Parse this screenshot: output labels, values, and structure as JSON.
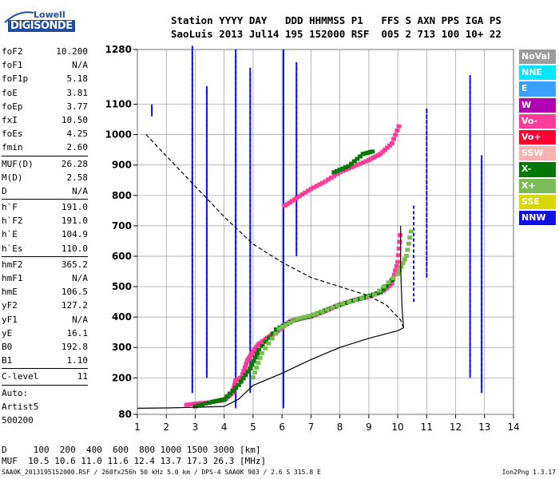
{
  "logo": {
    "line1": "Lowell",
    "line2": "DIGISONDE"
  },
  "header": {
    "row1": "Station YYYY DAY   DDD HHMMSS P1   FFS S AXN PPS IGA PS",
    "row2": "SaoLuis 2013 Jul14 195 152000 RSF  005 2 713 100 10+ 22"
  },
  "params": {
    "group1": [
      {
        "label": "foF2",
        "value": "10.200"
      },
      {
        "label": "foF1",
        "value": "N/A"
      },
      {
        "label": "foF1p",
        "value": "5.18"
      },
      {
        "label": "foE",
        "value": "3.81"
      },
      {
        "label": "foEp",
        "value": "3.77"
      },
      {
        "label": "fxI",
        "value": "10.50"
      },
      {
        "label": "foEs",
        "value": "4.25"
      },
      {
        "label": "fmin",
        "value": "2.60"
      }
    ],
    "group2": [
      {
        "label": "MUF(D)",
        "value": "26.28"
      },
      {
        "label": "M(D)",
        "value": "2.58"
      },
      {
        "label": "D",
        "value": "N/A"
      }
    ],
    "group3": [
      {
        "label": "h`F",
        "value": "191.0"
      },
      {
        "label": "h`F2",
        "value": "191.0"
      },
      {
        "label": "h`E",
        "value": "104.9"
      },
      {
        "label": "h`Es",
        "value": "110.0"
      }
    ],
    "group4": [
      {
        "label": "hmF2",
        "value": "365.2"
      },
      {
        "label": "hmF1",
        "value": "N/A"
      },
      {
        "label": "hmE",
        "value": "106.5"
      },
      {
        "label": "yF2",
        "value": "127.2"
      },
      {
        "label": "yF1",
        "value": "N/A"
      },
      {
        "label": "yE",
        "value": "16.1"
      },
      {
        "label": "B0",
        "value": "192.8"
      },
      {
        "label": "B1",
        "value": "1.10"
      }
    ],
    "clevel": {
      "label": "C-level",
      "value": "11"
    },
    "auto": [
      "Auto:",
      "Artist5",
      "500200"
    ]
  },
  "bottom": {
    "row1": "D     100  200  400  600  800 1000 1500 3000 [km]",
    "row2": "MUF  10.5 10.6 11.0 11.6 12.4 13.7 17.3 26.3 [MHz]"
  },
  "footer": {
    "left": "SAA0K_2013195152000.RSF / 260fx256h 50 kHz 5.0 km / DPS-4 SAA0K 903 / 2.6 S 315.8 E",
    "right": "Ion2Png 1.3.17"
  },
  "legend": [
    {
      "label": "NoVal",
      "color": "#9c9c9c"
    },
    {
      "label": "NNE",
      "color": "#00e6ff"
    },
    {
      "label": "E",
      "color": "#3aa0ff"
    },
    {
      "label": "W",
      "color": "#b000b0"
    },
    {
      "label": "Vo-",
      "color": "#ff3c9a"
    },
    {
      "label": "Vo+",
      "color": "#ff0030"
    },
    {
      "label": "SSW",
      "color": "#ffb0b0"
    },
    {
      "label": "X-",
      "color": "#007800"
    },
    {
      "label": "X+",
      "color": "#7cbc56"
    },
    {
      "label": "SSE",
      "color": "#d8d800"
    },
    {
      "label": "NNW",
      "color": "#1010e0"
    }
  ],
  "chart_data": {
    "type": "scatter",
    "xlabel": "",
    "ylabel": "",
    "xlim": [
      1,
      14
    ],
    "ylim": [
      80,
      1280
    ],
    "x_ticks": [
      1,
      2,
      3,
      4,
      5,
      6,
      7,
      8,
      9,
      10,
      11,
      12,
      13,
      14
    ],
    "y_ticks": [
      80,
      200,
      300,
      400,
      500,
      600,
      700,
      800,
      900,
      1000,
      1100,
      1280
    ],
    "grid": true,
    "legend_position": "right",
    "series": [
      {
        "color": "#ff3c9a",
        "points": [
          [
            2.7,
            110
          ],
          [
            3.1,
            115
          ],
          [
            3.5,
            118
          ],
          [
            4.0,
            125
          ],
          [
            4.3,
            150
          ],
          [
            4.4,
            190
          ],
          [
            4.6,
            200
          ],
          [
            4.8,
            255
          ],
          [
            5.0,
            285
          ],
          [
            5.2,
            310
          ],
          [
            5.5,
            330
          ],
          [
            5.8,
            350
          ],
          [
            6.0,
            365
          ],
          [
            6.3,
            385
          ],
          [
            6.6,
            393
          ],
          [
            7.0,
            400
          ],
          [
            7.5,
            418
          ],
          [
            8.0,
            440
          ],
          [
            8.5,
            455
          ],
          [
            9.0,
            465
          ],
          [
            9.5,
            485
          ],
          [
            9.8,
            510
          ],
          [
            10.0,
            580
          ],
          [
            10.1,
            690
          ]
        ]
      },
      {
        "color": "#007800",
        "points": [
          [
            3.0,
            105
          ],
          [
            3.6,
            120
          ],
          [
            4.0,
            128
          ],
          [
            4.5,
            175
          ],
          [
            4.9,
            230
          ],
          [
            5.2,
            290
          ],
          [
            5.8,
            358
          ],
          [
            6.4,
            388
          ],
          [
            7.0,
            402
          ],
          [
            7.6,
            425
          ],
          [
            8.2,
            445
          ],
          [
            8.8,
            462
          ],
          [
            9.4,
            480
          ],
          [
            9.9,
            530
          ]
        ]
      },
      {
        "color": "#7cbc56",
        "points": [
          [
            5.0,
            200
          ],
          [
            5.3,
            280
          ],
          [
            5.9,
            360
          ],
          [
            6.5,
            392
          ],
          [
            7.2,
            410
          ],
          [
            8.1,
            443
          ],
          [
            9.2,
            472
          ],
          [
            10.0,
            540
          ],
          [
            10.3,
            600
          ],
          [
            10.5,
            700
          ]
        ]
      },
      {
        "color": "#ff3c9a",
        "points": [
          [
            6.1,
            765
          ],
          [
            6.5,
            790
          ],
          [
            7.0,
            820
          ],
          [
            7.5,
            845
          ],
          [
            8.0,
            875
          ],
          [
            8.5,
            895
          ],
          [
            9.0,
            915
          ],
          [
            9.4,
            935
          ],
          [
            9.8,
            970
          ],
          [
            10.1,
            1040
          ]
        ]
      },
      {
        "color": "#007800",
        "points": [
          [
            7.8,
            875
          ],
          [
            8.3,
            895
          ],
          [
            8.8,
            935
          ],
          [
            9.2,
            945
          ]
        ]
      }
    ],
    "lines": [
      {
        "name": "",
        "style": "dashed",
        "points": [
          [
            1.3,
            1000
          ],
          [
            2.0,
            930
          ],
          [
            3.0,
            830
          ],
          [
            4.0,
            730
          ],
          [
            5.0,
            640
          ],
          [
            6.0,
            580
          ],
          [
            7.0,
            530
          ],
          [
            8.0,
            500
          ],
          [
            9.0,
            470
          ],
          [
            9.6,
            440
          ],
          [
            10.1,
            390
          ],
          [
            10.2,
            365
          ]
        ]
      },
      {
        "name": "",
        "style": "solid",
        "points": [
          [
            1.0,
            100
          ],
          [
            2.0,
            101
          ],
          [
            3.0,
            103
          ],
          [
            4.0,
            106
          ],
          [
            4.5,
            130
          ],
          [
            5.0,
            175
          ],
          [
            6.0,
            215
          ],
          [
            7.0,
            260
          ],
          [
            8.0,
            300
          ],
          [
            9.0,
            330
          ],
          [
            9.6,
            345
          ],
          [
            10.0,
            355
          ],
          [
            10.2,
            365
          ],
          [
            10.15,
            430
          ],
          [
            10.1,
            560
          ],
          [
            10.1,
            700
          ]
        ]
      }
    ],
    "vertical_traces": [
      {
        "x": 1.5,
        "y": [
          1060,
          1090
        ]
      },
      {
        "x": 2.9,
        "y": [
          150,
          1280
        ]
      },
      {
        "x": 3.4,
        "y": [
          200,
          1150
        ]
      },
      {
        "x": 4.4,
        "y": [
          100,
          1260
        ]
      },
      {
        "x": 4.9,
        "y": [
          150,
          1200
        ]
      },
      {
        "x": 6.05,
        "y": [
          100,
          1270
        ]
      },
      {
        "x": 6.5,
        "y": [
          600,
          1220
        ]
      },
      {
        "x": 10.55,
        "y": [
          450,
          760
        ]
      },
      {
        "x": 11.0,
        "y": [
          530,
          1080
        ]
      },
      {
        "x": 12.5,
        "y": [
          200,
          1180
        ]
      },
      {
        "x": 12.9,
        "y": [
          150,
          920
        ]
      }
    ]
  }
}
